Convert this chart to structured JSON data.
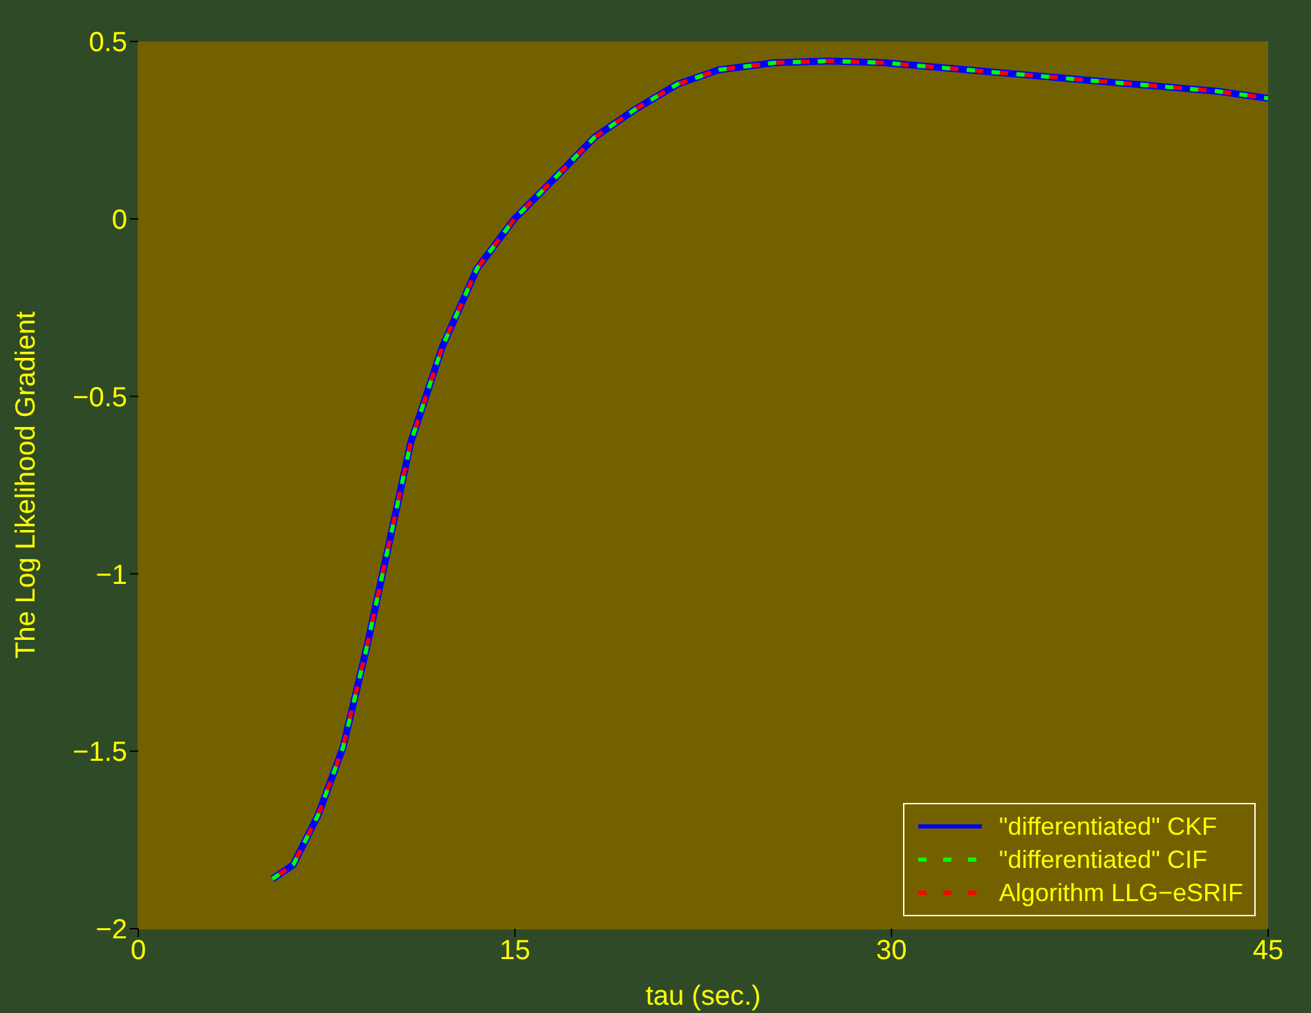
{
  "chart_data": {
    "type": "line",
    "xlabel": "tau (sec.)",
    "ylabel": "The Log Likelihood Gradient",
    "x": [
      5.34,
      6.17,
      7.16,
      8.15,
      9.09,
      9.91,
      10.85,
      12.11,
      13.49,
      14.98,
      16.52,
      18.17,
      19.82,
      21.48,
      23.13,
      25.33,
      27.5,
      29.7,
      33.0,
      36.3,
      39.6,
      42.95,
      45
    ],
    "series": [
      {
        "name": "\"differentiated\" CKF",
        "color": "#0000ff",
        "line_style": "solid",
        "values": [
          -1.86,
          -1.82,
          -1.68,
          -1.49,
          -1.21,
          -0.94,
          -0.63,
          -0.36,
          -0.14,
          0.0,
          0.11,
          0.23,
          0.31,
          0.38,
          0.42,
          0.44,
          0.445,
          0.44,
          0.42,
          0.4,
          0.38,
          0.36,
          0.34
        ]
      },
      {
        "name": "\"differentiated\" CIF",
        "color": "#00ff00",
        "line_style": "dashed",
        "values": [
          -1.86,
          -1.82,
          -1.68,
          -1.49,
          -1.21,
          -0.94,
          -0.63,
          -0.36,
          -0.14,
          0.0,
          0.11,
          0.23,
          0.31,
          0.38,
          0.42,
          0.44,
          0.445,
          0.44,
          0.42,
          0.4,
          0.38,
          0.36,
          0.34
        ]
      },
      {
        "name": "Algorithm LLG−eSRIF",
        "color": "#ff0000",
        "line_style": "dashed",
        "values": [
          -1.86,
          -1.82,
          -1.68,
          -1.49,
          -1.21,
          -0.94,
          -0.63,
          -0.36,
          -0.14,
          0.0,
          0.11,
          0.23,
          0.31,
          0.38,
          0.42,
          0.44,
          0.445,
          0.44,
          0.42,
          0.4,
          0.38,
          0.36,
          0.34
        ]
      }
    ],
    "xlim": [
      0,
      45
    ],
    "xticks": [
      0,
      15,
      30,
      45
    ],
    "ylim": [
      -2,
      0.5
    ],
    "yticks": [
      {
        "value": -2,
        "label": "−2"
      },
      {
        "value": -1.5,
        "label": "−1.5"
      },
      {
        "value": -1,
        "label": "−1"
      },
      {
        "value": -0.5,
        "label": "−0.5"
      },
      0,
      0.5
    ],
    "grid": false,
    "legend": "bottom right",
    "marker": "none"
  }
}
